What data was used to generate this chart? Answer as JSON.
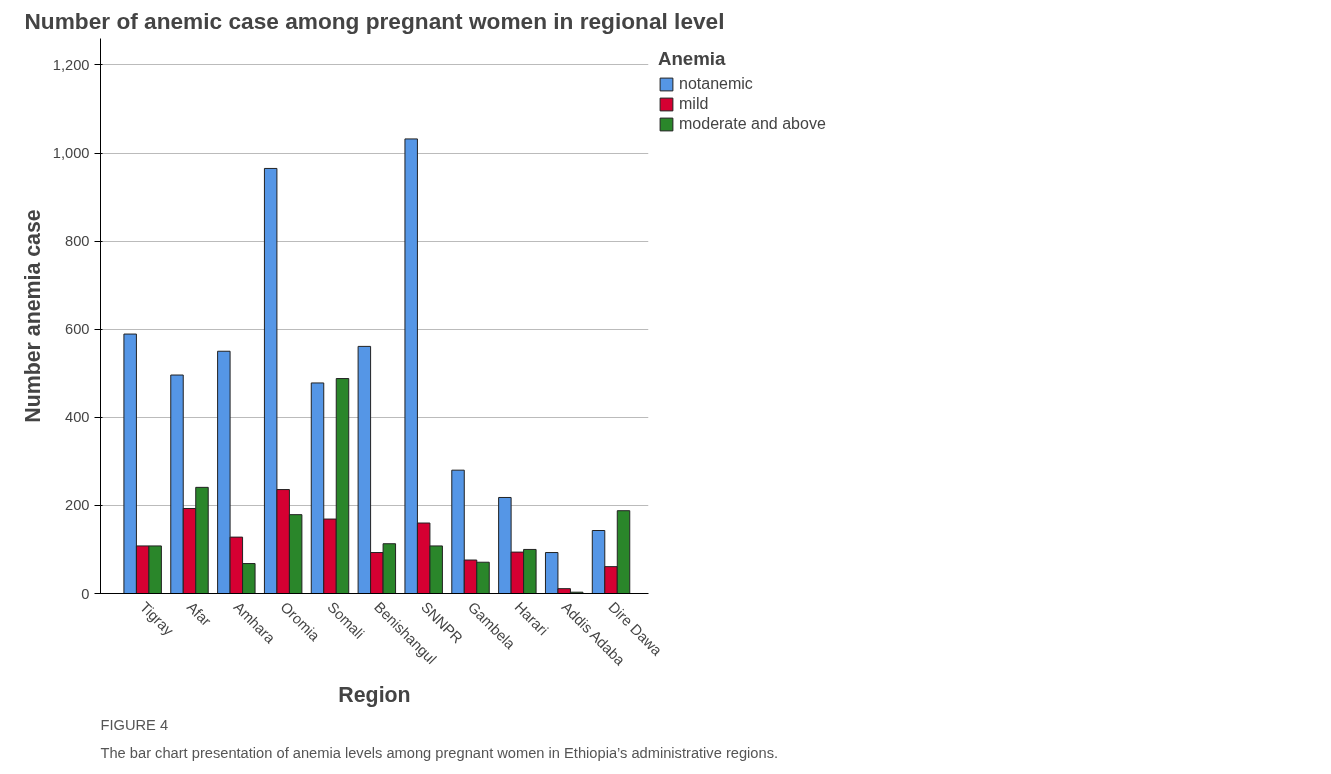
{
  "chart_data": {
    "type": "bar",
    "title": "Number of anemic case among pregnant women in regional level",
    "xlabel": "Region",
    "ylabel": "Number anemia case",
    "legend_title": "Anemia",
    "categories": [
      "Tigray",
      "Afar",
      "Amhara",
      "Oromia",
      "Somali",
      "Benishangul",
      "SNNPR",
      "Gambela",
      "Harari",
      "Addis Adaba",
      "Dire Dawa"
    ],
    "series": [
      {
        "name": "notanemic",
        "color": "#5596e6",
        "values": [
          589,
          496,
          550,
          965,
          478,
          561,
          1032,
          280,
          218,
          93,
          143
        ]
      },
      {
        "name": "mild",
        "color": "#d50032",
        "values": [
          108,
          193,
          128,
          236,
          169,
          93,
          160,
          76,
          94,
          11,
          61
        ]
      },
      {
        "name": "moderate and above",
        "color": "#2a862a",
        "values": [
          108,
          241,
          68,
          179,
          488,
          113,
          108,
          71,
          100,
          3,
          188
        ]
      }
    ],
    "ylim": [
      0,
      1260
    ],
    "yticks": [
      {
        "value": 0,
        "label": "0"
      },
      {
        "value": 200,
        "label": "200"
      },
      {
        "value": 400,
        "label": "400"
      },
      {
        "value": 600,
        "label": "600"
      },
      {
        "value": 800,
        "label": "800"
      },
      {
        "value": 1000,
        "label": "1,000"
      },
      {
        "value": 1200,
        "label": "1,200"
      }
    ],
    "grid": "y",
    "legend": "top right",
    "annotations": [
      "FIGURE 4",
      "The bar chart presentation of anemia levels among pregnant women in Ethiopia’s administrative regions."
    ]
  }
}
